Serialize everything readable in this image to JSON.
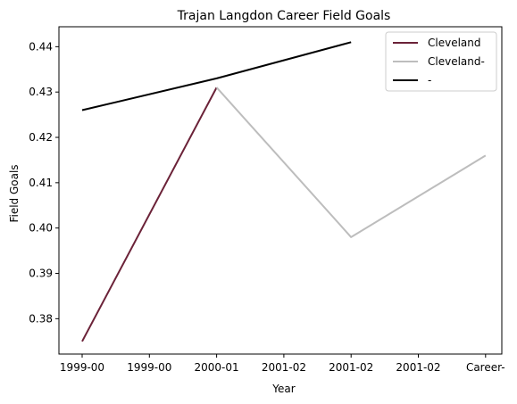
{
  "chart_data": {
    "type": "line",
    "title": "Trajan Langdon Career Field Goals",
    "xlabel": "Year",
    "ylabel": "Field Goals",
    "categories": [
      "1999-00",
      "1999-00",
      "2000-01",
      "2001-02",
      "2001-02",
      "2001-02",
      "Career-"
    ],
    "ylim": [
      0.3722,
      0.4444
    ],
    "yticks": [
      0.38,
      0.39,
      0.4,
      0.41,
      0.42,
      0.43,
      0.44
    ],
    "ytick_labels": [
      "0.38",
      "0.39",
      "0.40",
      "0.41",
      "0.42",
      "0.43",
      "0.44"
    ],
    "grid": false,
    "legend_position": "top-right",
    "series": [
      {
        "name": "Cleveland",
        "color": "#6b2238",
        "points": [
          [
            0,
            0.375
          ],
          [
            2,
            0.431
          ]
        ]
      },
      {
        "name": "Cleveland-",
        "color": "#bdbdbd",
        "points": [
          [
            2,
            0.431
          ],
          [
            4,
            0.398
          ],
          [
            6,
            0.416
          ]
        ]
      },
      {
        "name": "-",
        "color": "#000000",
        "points": [
          [
            0,
            0.426
          ],
          [
            2,
            0.433
          ],
          [
            4,
            0.441
          ]
        ]
      }
    ]
  }
}
